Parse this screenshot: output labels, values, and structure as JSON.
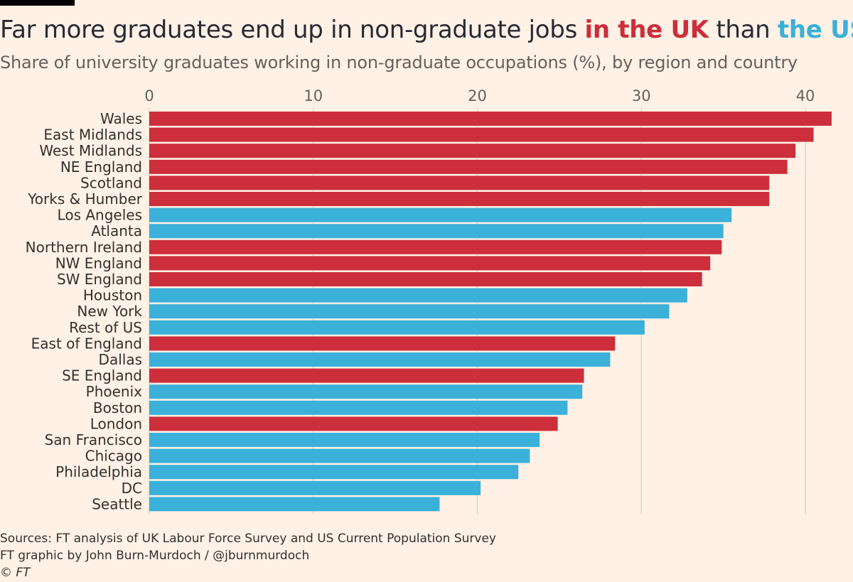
{
  "header": {
    "title_prefix": "Far more graduates end up in non-graduate jobs ",
    "title_uk": "in the UK",
    "title_mid": " than ",
    "title_us": "the US",
    "subtitle": "Share of university graduates working in non-graduate occupations (%), by region and country"
  },
  "colors": {
    "uk": "#cc2e3b",
    "us": "#3bb0d9",
    "grid": "#e0d5cb",
    "background": "#fff1e5"
  },
  "chart_data": {
    "type": "bar",
    "orientation": "horizontal",
    "title": "Far more graduates end up in non-graduate jobs in the UK than the US",
    "subtitle": "Share of university graduates working in non-graduate occupations (%), by region and country",
    "xlim": [
      0,
      42
    ],
    "xticks": [
      0,
      10,
      20,
      30,
      40
    ],
    "grid": true,
    "categories": [
      "Wales",
      "East Midlands",
      "West Midlands",
      "NE England",
      "Scotland",
      "Yorks & Humber",
      "Los Angeles",
      "Atlanta",
      "Northern Ireland",
      "NW England",
      "SW England",
      "Houston",
      "New York",
      "Rest of US",
      "East of England",
      "Dallas",
      "SE England",
      "Phoenix",
      "Boston",
      "London",
      "San Francisco",
      "Chicago",
      "Philadelphia",
      "DC",
      "Seattle"
    ],
    "values": [
      41.6,
      40.5,
      39.4,
      38.9,
      37.8,
      37.8,
      35.5,
      35.0,
      34.9,
      34.2,
      33.7,
      32.8,
      31.7,
      30.2,
      28.4,
      28.1,
      26.5,
      26.4,
      25.5,
      24.9,
      23.8,
      23.2,
      22.5,
      20.2,
      17.7
    ],
    "groups": [
      "UK",
      "UK",
      "UK",
      "UK",
      "UK",
      "UK",
      "US",
      "US",
      "UK",
      "UK",
      "UK",
      "US",
      "US",
      "US",
      "UK",
      "US",
      "UK",
      "US",
      "US",
      "UK",
      "US",
      "US",
      "US",
      "US",
      "US"
    ]
  },
  "footer": {
    "sources": "Sources: FT analysis of UK Labour Force Survey and US Current Population Survey",
    "credit": "FT graphic by John Burn-Murdoch / @jburnmurdoch",
    "copyright": "© FT"
  }
}
